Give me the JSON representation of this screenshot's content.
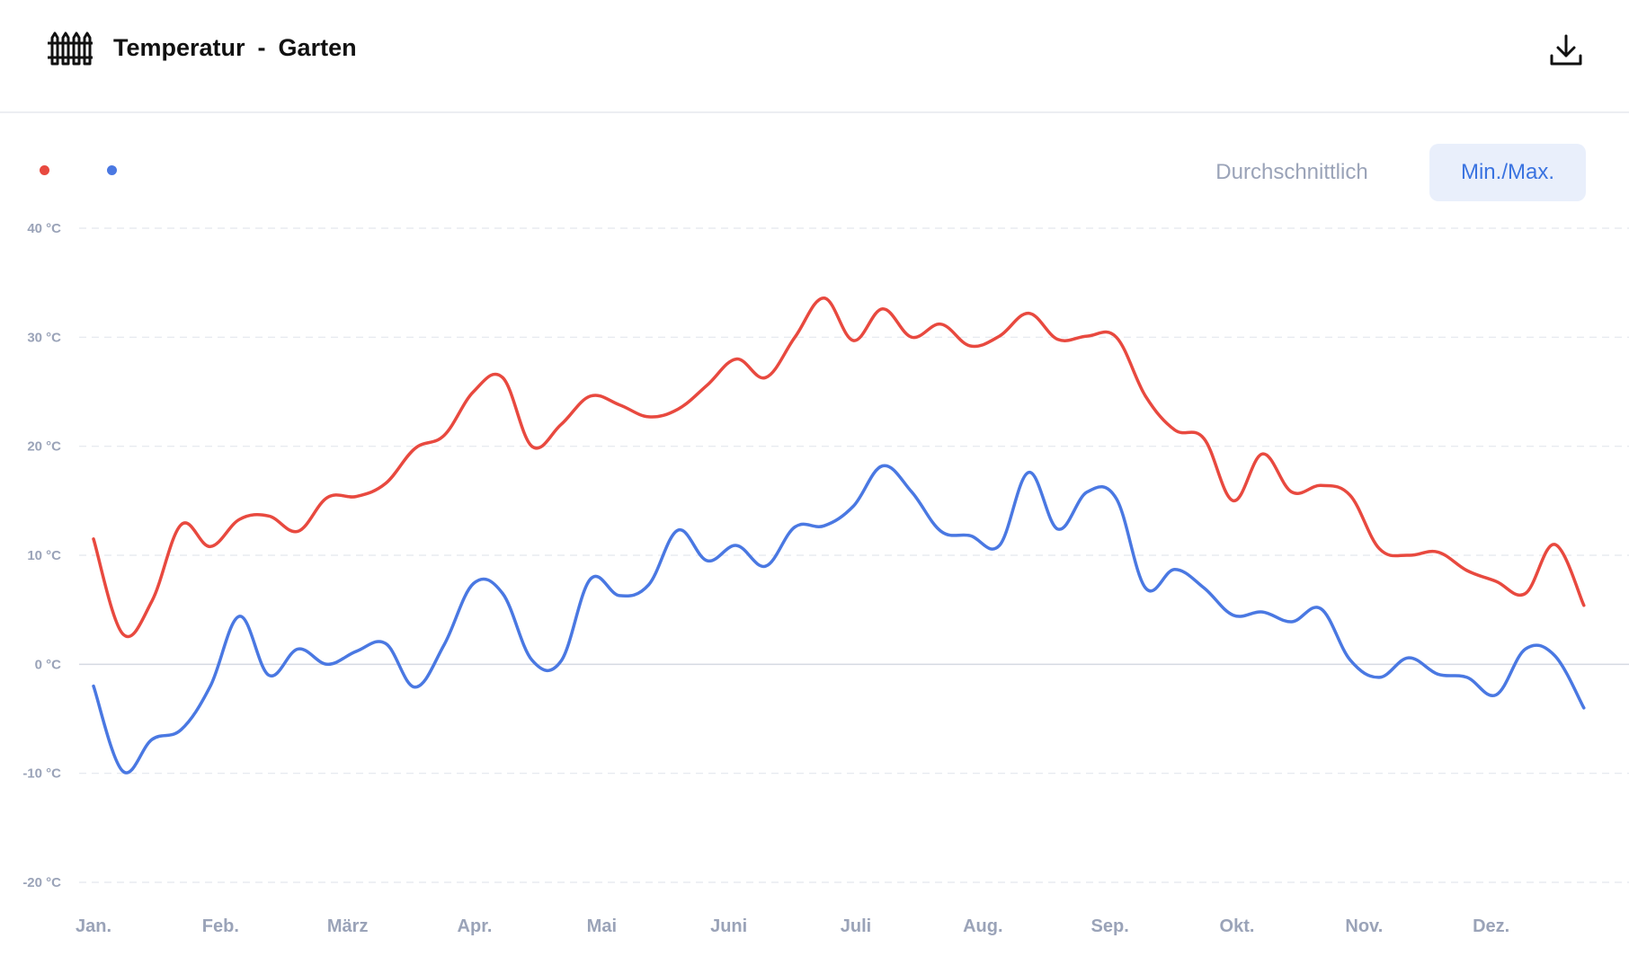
{
  "header": {
    "title": "Temperatur",
    "separator": "-",
    "location": "Garten",
    "icon": "fence-icon",
    "download_icon": "download-icon"
  },
  "legend": {
    "items": [
      {
        "color": "#e8493f"
      },
      {
        "color": "#4a78e2"
      }
    ]
  },
  "toggle": {
    "average_label": "Durchschnittlich",
    "minmax_label": "Min./Max.",
    "active": "minmax"
  },
  "colors": {
    "max_line": "#e8493f",
    "min_line": "#4a78e2",
    "accent": "#3a73e0",
    "axis_text": "#9aa3b8"
  },
  "chart_data": {
    "type": "line",
    "ylim": [
      -20,
      40
    ],
    "yticks": [
      {
        "value": 40,
        "label": "40 °C"
      },
      {
        "value": 30,
        "label": "30 °C"
      },
      {
        "value": 20,
        "label": "20 °C"
      },
      {
        "value": 10,
        "label": "10 °C"
      },
      {
        "value": 0,
        "label": "0 °C"
      },
      {
        "value": -10,
        "label": "-10 °C"
      },
      {
        "value": -20,
        "label": "-20 °C"
      }
    ],
    "xlim": [
      0,
      12
    ],
    "months": [
      {
        "label": "Jan.",
        "pos": 0
      },
      {
        "label": "Feb.",
        "pos": 1
      },
      {
        "label": "März",
        "pos": 2
      },
      {
        "label": "Apr.",
        "pos": 3
      },
      {
        "label": "Mai",
        "pos": 4
      },
      {
        "label": "Juni",
        "pos": 5
      },
      {
        "label": "Juli",
        "pos": 6
      },
      {
        "label": "Aug.",
        "pos": 7
      },
      {
        "label": "Sep.",
        "pos": 8
      },
      {
        "label": "Okt.",
        "pos": 9
      },
      {
        "label": "Nov.",
        "pos": 10
      },
      {
        "label": "Dez.",
        "pos": 11
      }
    ],
    "grid": "horizontal dashed",
    "series": [
      {
        "key": "max",
        "color": "#e8493f",
        "points": [
          [
            0.0,
            11.5
          ],
          [
            0.23,
            2.8
          ],
          [
            0.46,
            5.8
          ],
          [
            0.69,
            12.8
          ],
          [
            0.92,
            10.8
          ],
          [
            1.15,
            13.3
          ],
          [
            1.38,
            13.6
          ],
          [
            1.61,
            12.2
          ],
          [
            1.84,
            15.3
          ],
          [
            2.07,
            15.4
          ],
          [
            2.3,
            16.6
          ],
          [
            2.53,
            19.8
          ],
          [
            2.76,
            21.0
          ],
          [
            2.99,
            25.0
          ],
          [
            3.22,
            26.3
          ],
          [
            3.45,
            20.0
          ],
          [
            3.68,
            22.0
          ],
          [
            3.91,
            24.6
          ],
          [
            4.14,
            23.8
          ],
          [
            4.37,
            22.7
          ],
          [
            4.6,
            23.4
          ],
          [
            4.83,
            25.6
          ],
          [
            5.06,
            28.0
          ],
          [
            5.29,
            26.3
          ],
          [
            5.52,
            30.0
          ],
          [
            5.75,
            33.6
          ],
          [
            5.98,
            29.7
          ],
          [
            6.21,
            32.6
          ],
          [
            6.44,
            30.0
          ],
          [
            6.67,
            31.2
          ],
          [
            6.9,
            29.2
          ],
          [
            7.13,
            30.1
          ],
          [
            7.36,
            32.2
          ],
          [
            7.59,
            29.8
          ],
          [
            7.82,
            30.1
          ],
          [
            8.05,
            30.0
          ],
          [
            8.28,
            24.6
          ],
          [
            8.51,
            21.5
          ],
          [
            8.74,
            20.7
          ],
          [
            8.97,
            15.0
          ],
          [
            9.2,
            19.3
          ],
          [
            9.43,
            15.8
          ],
          [
            9.66,
            16.4
          ],
          [
            9.89,
            15.5
          ],
          [
            10.12,
            10.6
          ],
          [
            10.35,
            10.0
          ],
          [
            10.58,
            10.3
          ],
          [
            10.81,
            8.6
          ],
          [
            11.04,
            7.6
          ],
          [
            11.27,
            6.5
          ],
          [
            11.5,
            11.0
          ],
          [
            11.73,
            5.4
          ]
        ]
      },
      {
        "key": "min",
        "color": "#4a78e2",
        "points": [
          [
            0.0,
            -2.0
          ],
          [
            0.23,
            -9.8
          ],
          [
            0.46,
            -6.9
          ],
          [
            0.69,
            -6.0
          ],
          [
            0.92,
            -2.0
          ],
          [
            1.15,
            4.4
          ],
          [
            1.38,
            -1.0
          ],
          [
            1.61,
            1.4
          ],
          [
            1.84,
            0.0
          ],
          [
            2.07,
            1.2
          ],
          [
            2.3,
            1.9
          ],
          [
            2.53,
            -2.1
          ],
          [
            2.76,
            1.8
          ],
          [
            2.99,
            7.4
          ],
          [
            3.22,
            6.5
          ],
          [
            3.45,
            0.4
          ],
          [
            3.68,
            0.3
          ],
          [
            3.91,
            7.8
          ],
          [
            4.14,
            6.3
          ],
          [
            4.37,
            7.3
          ],
          [
            4.6,
            12.3
          ],
          [
            4.83,
            9.5
          ],
          [
            5.06,
            10.9
          ],
          [
            5.29,
            9.0
          ],
          [
            5.52,
            12.6
          ],
          [
            5.75,
            12.7
          ],
          [
            5.98,
            14.5
          ],
          [
            6.21,
            18.2
          ],
          [
            6.44,
            15.8
          ],
          [
            6.67,
            12.2
          ],
          [
            6.9,
            11.8
          ],
          [
            7.13,
            10.9
          ],
          [
            7.36,
            17.6
          ],
          [
            7.59,
            12.4
          ],
          [
            7.82,
            15.8
          ],
          [
            8.05,
            15.2
          ],
          [
            8.28,
            7.0
          ],
          [
            8.51,
            8.7
          ],
          [
            8.74,
            7.0
          ],
          [
            8.97,
            4.5
          ],
          [
            9.2,
            4.8
          ],
          [
            9.43,
            3.9
          ],
          [
            9.66,
            5.1
          ],
          [
            9.89,
            0.4
          ],
          [
            10.12,
            -1.2
          ],
          [
            10.35,
            0.6
          ],
          [
            10.58,
            -0.9
          ],
          [
            10.81,
            -1.2
          ],
          [
            11.04,
            -2.8
          ],
          [
            11.27,
            1.4
          ],
          [
            11.5,
            0.8
          ],
          [
            11.73,
            -4.0
          ]
        ]
      }
    ]
  }
}
